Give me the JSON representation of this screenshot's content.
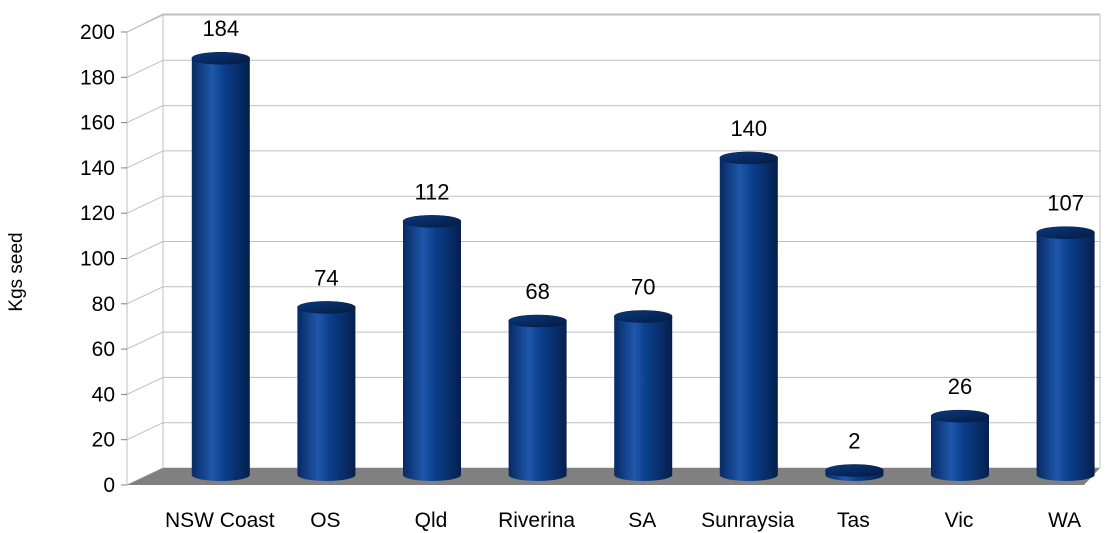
{
  "chart_data": {
    "type": "bar",
    "title": "",
    "xlabel": "",
    "ylabel": "Kgs seed",
    "categories": [
      "NSW Coast",
      "OS",
      "Qld",
      "Riverina",
      "SA",
      "Sunraysia",
      "Tas",
      "Vic",
      "WA"
    ],
    "values": [
      184,
      74,
      112,
      68,
      70,
      140,
      2,
      26,
      107
    ],
    "data_labels": [
      "184",
      "74",
      "112",
      "68",
      "70",
      "140",
      "2",
      "26",
      "107"
    ],
    "ylim": [
      0,
      200
    ],
    "yticks": [
      "0",
      "20",
      "40",
      "60",
      "80",
      "100",
      "120",
      "140",
      "160",
      "180",
      "200"
    ],
    "grid": true,
    "legend": "none",
    "bar_style": "3d-cylinder",
    "colors": {
      "bar": "#0b3f8c",
      "bar_dark": "#062a63",
      "bar_light": "#2f6ac2",
      "floor": "#808080",
      "grid": "#bfbfbf"
    }
  }
}
